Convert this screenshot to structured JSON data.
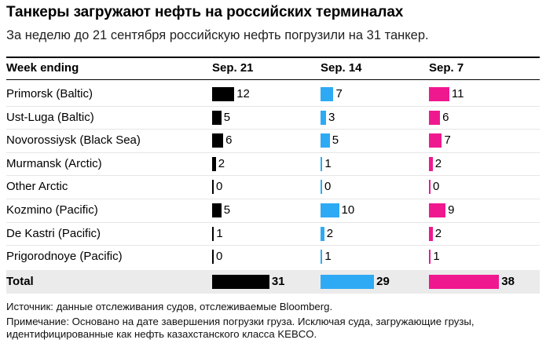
{
  "title": "Танкеры загружают нефть на российских терминалах",
  "subtitle": "За неделю до 21 сентября российскую нефть погрузили на 31 танкер.",
  "colors": {
    "sep21": "#000000",
    "sep14": "#2eaaf5",
    "sep7": "#f0188f"
  },
  "chart_data": {
    "type": "bar",
    "title": "Танкеры загружают нефть на российских терминалах",
    "row_header": "Week ending",
    "categories": [
      "Primorsk (Baltic)",
      "Ust-Luga (Baltic)",
      "Novorossiysk (Black Sea)",
      "Murmansk (Arctic)",
      "Other Arctic",
      "Kozmino (Pacific)",
      "De Kastri (Pacific)",
      "Prigorodnoye (Pacific)"
    ],
    "series": [
      {
        "name": "Sep. 21",
        "color": "#000000",
        "values": [
          12,
          5,
          6,
          2,
          0,
          5,
          1,
          0
        ],
        "total": 31
      },
      {
        "name": "Sep. 14",
        "color": "#2eaaf5",
        "values": [
          7,
          3,
          5,
          1,
          0,
          10,
          2,
          1
        ],
        "total": 29
      },
      {
        "name": "Sep. 7",
        "color": "#f0188f",
        "values": [
          11,
          6,
          7,
          2,
          0,
          9,
          2,
          1
        ],
        "total": 38
      }
    ],
    "total_label": "Total"
  },
  "footnotes": {
    "source": "Источник: данные отслеживания судов, отслеживаемые Bloomberg.",
    "note1": "Примечание: Основано на дате завершения погрузки груза. Исключая суда, загружающие грузы,",
    "note2": "идентифицированные как нефть казахстанского класса KEBCO."
  }
}
